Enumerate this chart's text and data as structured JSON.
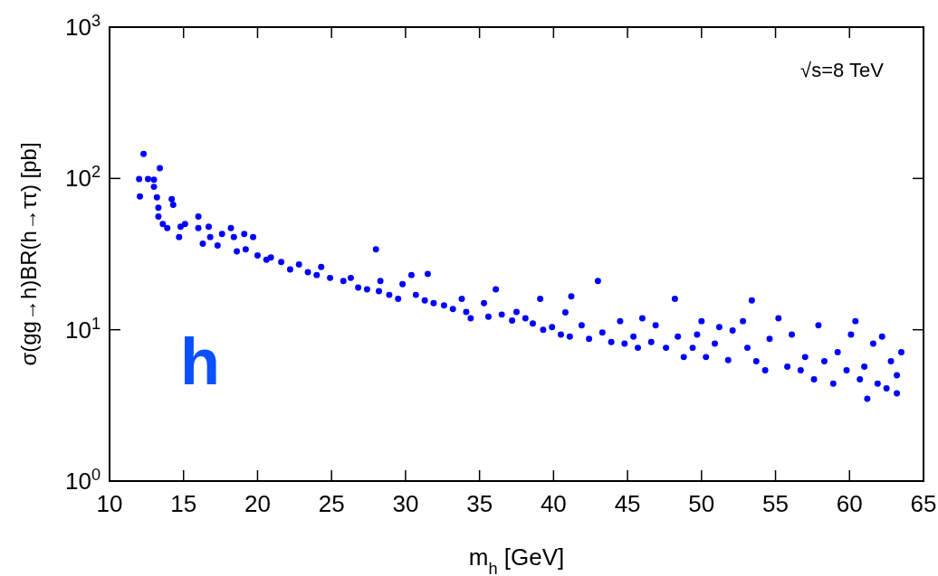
{
  "chart_data": {
    "type": "scatter",
    "xlabel": "m$_{h}$ [GeV]",
    "ylabel": "σ(gg→h)BR(h→ττ) [pb]",
    "annotations": [
      "√s=8 TeV",
      "h"
    ],
    "log": "y",
    "grid": false,
    "marker": "circle",
    "xlim": [
      10,
      65
    ],
    "xticks": [
      10,
      15,
      20,
      25,
      30,
      35,
      40,
      45,
      50,
      55,
      60,
      65
    ],
    "ylim": [
      1,
      1000
    ],
    "yticks": [
      {
        "value": 1,
        "label": "10$^{0}$"
      },
      {
        "value": 10,
        "label": "10$^{1}$"
      },
      {
        "value": 100,
        "label": "10$^{2}$"
      },
      {
        "value": 1000,
        "label": "10$^{3}$"
      }
    ],
    "series": [
      {
        "color": "#0000ff",
        "x": [
          12.0,
          12.05,
          12.3,
          12.6,
          13.0,
          13.4,
          13.0,
          13.2,
          13.3,
          13.3,
          13.6,
          13.9,
          14.2,
          14.3,
          14.7,
          14.8,
          15.1,
          16.0,
          16.0,
          16.3,
          16.7,
          16.8,
          17.3,
          17.6,
          18.2,
          18.4,
          18.6,
          19.1,
          19.2,
          19.7,
          20.0,
          20.6,
          20.9,
          21.6,
          22.2,
          22.8,
          23.4,
          24.0,
          24.3,
          24.9,
          25.8,
          26.3,
          26.8,
          27.4,
          28.2,
          28.0,
          28.3,
          28.9,
          29.5,
          29.8,
          30.4,
          30.7,
          31.3,
          31.5,
          31.9,
          32.6,
          33.2,
          33.8,
          34.1,
          34.4,
          35.3,
          35.6,
          36.1,
          36.5,
          37.2,
          37.5,
          38.1,
          38.6,
          39.1,
          39.3,
          39.9,
          40.5,
          40.8,
          41.1,
          41.2,
          41.9,
          42.4,
          43.0,
          43.3,
          43.9,
          44.5,
          44.8,
          45.4,
          45.7,
          46.0,
          46.6,
          46.9,
          47.6,
          48.2,
          48.4,
          48.8,
          49.4,
          49.7,
          50.0,
          50.3,
          50.9,
          51.2,
          51.8,
          52.1,
          52.8,
          53.1,
          53.4,
          53.7,
          54.3,
          54.6,
          55.2,
          55.8,
          56.1,
          56.7,
          57.0,
          57.6,
          57.9,
          58.3,
          58.9,
          59.2,
          59.8,
          60.1,
          60.4,
          60.7,
          61.0,
          61.2,
          61.6,
          61.9,
          62.2,
          62.5,
          62.8,
          63.2,
          63.5,
          63.2
        ],
        "values": [
          99,
          76,
          145,
          99,
          98,
          117,
          88,
          75,
          64,
          56,
          50,
          47,
          73,
          67,
          41,
          48,
          50,
          56,
          47,
          37,
          48,
          41,
          36,
          43,
          47,
          41,
          33,
          43,
          34,
          41,
          31,
          29,
          30,
          28,
          25,
          27,
          24,
          23,
          26,
          22,
          21,
          22,
          19,
          18.5,
          18,
          34,
          21,
          17,
          16,
          20,
          23,
          17,
          15.6,
          23.4,
          15,
          14.5,
          13.7,
          16,
          13.1,
          11.9,
          15,
          12.2,
          18.5,
          12.6,
          11.5,
          13.1,
          11.9,
          11,
          16,
          10,
          10.4,
          9.3,
          13,
          9,
          16.6,
          10.7,
          8.7,
          21,
          9.6,
          8.3,
          11.4,
          8.1,
          9,
          7.6,
          11.9,
          8.3,
          10.7,
          7.6,
          16,
          9,
          6.6,
          7.6,
          9.3,
          11.4,
          6.6,
          8.1,
          10.4,
          6.3,
          9.9,
          11.4,
          7.6,
          15.6,
          6.2,
          5.4,
          8.7,
          11.9,
          5.7,
          9.3,
          5.4,
          6.6,
          4.7,
          10.7,
          6.2,
          4.4,
          7.1,
          5.4,
          9.3,
          11.4,
          4.7,
          5.7,
          3.5,
          8.1,
          4.4,
          9,
          4.1,
          6.2,
          3.8,
          7.1,
          5
        ]
      }
    ]
  }
}
